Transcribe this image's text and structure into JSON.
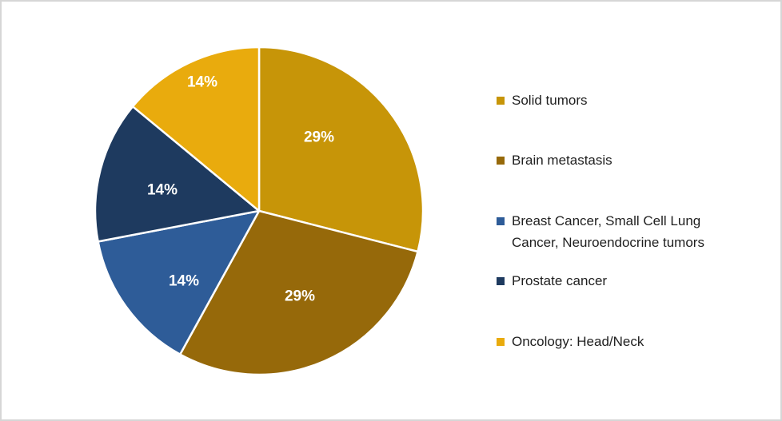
{
  "chart_data": {
    "type": "pie",
    "title": "",
    "unit": "percent",
    "start_angle_deg": 0,
    "direction": "clockwise",
    "legend_position": "right",
    "data_label_color": "#FFFFFF",
    "slices": [
      {
        "label": "Solid tumors",
        "value": 29,
        "data_label": "29%",
        "color": "#C79508",
        "legend_lines": [
          "Solid tumors"
        ]
      },
      {
        "label": "Brain metastasis",
        "value": 29,
        "data_label": "29%",
        "color": "#96690A",
        "legend_lines": [
          "Brain metastasis"
        ]
      },
      {
        "label": "Breast Cancer, Small Cell Lung Cancer, Neuroendocrine tumors",
        "value": 14,
        "data_label": "14%",
        "color": "#2E5C98",
        "legend_lines": [
          "Breast Cancer, Small Cell Lung",
          "Cancer, Neuroendocrine tumors"
        ]
      },
      {
        "label": "Prostate cancer",
        "value": 14,
        "data_label": "14%",
        "color": "#1E3A5F",
        "legend_lines": [
          "Prostate cancer"
        ]
      },
      {
        "label": "Oncology: Head/Neck",
        "value": 14,
        "data_label": "14%",
        "color": "#E9AB0D",
        "legend_lines": [
          "Oncology: Head/Neck"
        ]
      }
    ]
  }
}
